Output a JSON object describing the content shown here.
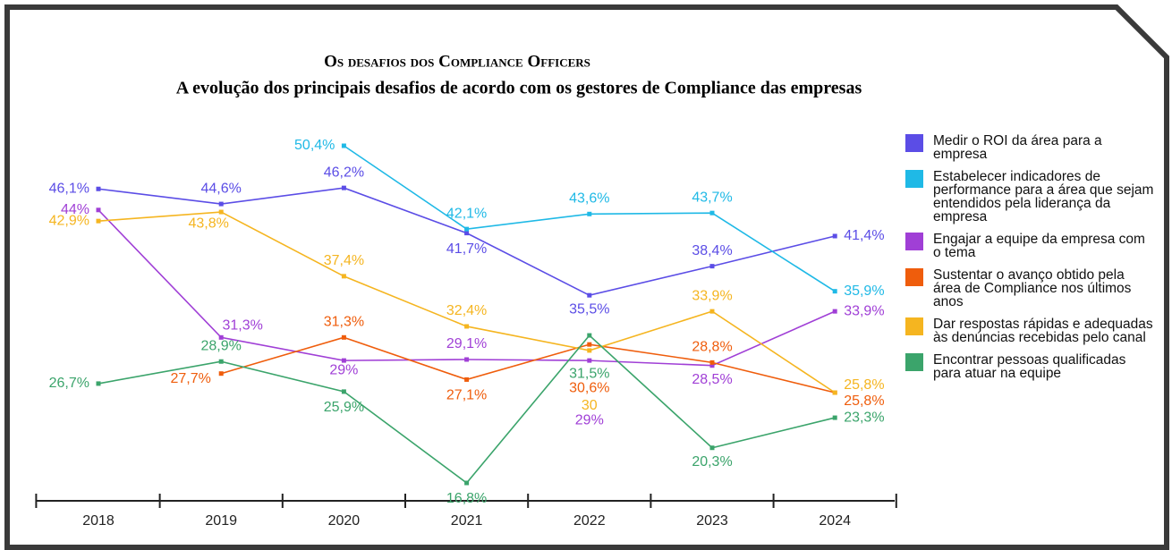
{
  "chart_data": {
    "type": "line",
    "title": "Os desafios dos Compliance Officers",
    "subtitle": "A evolução dos principais desafios de acordo com os gestores de Compliance das empresas",
    "categories": [
      "2018",
      "2019",
      "2020",
      "2021",
      "2022",
      "2023",
      "2024"
    ],
    "series": [
      {
        "name": "Medir o ROI da área para a empresa",
        "color": "#5b4de6",
        "values": [
          46.1,
          44.6,
          46.2,
          41.7,
          35.5,
          38.4,
          41.4
        ],
        "value_labels": [
          "46,1%",
          "44,6%",
          "46,2%",
          "41,7%",
          "35,5%",
          "38,4%",
          "41,4%"
        ]
      },
      {
        "name": "Estabelecer indicadores de performance para a área que sejam entendidos pela liderança da empresa",
        "color": "#1fb9e6",
        "values": [
          null,
          null,
          50.4,
          42.1,
          43.6,
          43.7,
          35.9
        ],
        "value_labels": [
          null,
          null,
          "50,4%",
          "42,1%",
          "43,6%",
          "43,7%",
          "35,9%"
        ]
      },
      {
        "name": "Engajar a equipe da empresa com o tema",
        "color": "#a03fd6",
        "values": [
          44,
          31.3,
          29,
          29.1,
          29,
          28.5,
          33.9
        ],
        "value_labels": [
          "44%",
          "31,3%",
          "29%",
          "29,1%",
          "29%",
          "28,5%",
          "33,9%"
        ]
      },
      {
        "name": "Sustentar o avanço obtido pela área de Compliance nos últimos anos",
        "color": "#ef5d0c",
        "values": [
          null,
          27.7,
          31.3,
          27.1,
          30.6,
          28.8,
          25.8
        ],
        "value_labels": [
          null,
          "27,7%",
          "31,3%",
          "27,1%",
          "30,6%",
          "28,8%",
          "25,8%"
        ]
      },
      {
        "name": "Dar respostas rápidas e adequadas às denúncias recebidas pelo canal",
        "color": "#f5b520",
        "values": [
          42.9,
          43.8,
          37.4,
          32.4,
          30,
          33.9,
          25.8
        ],
        "value_labels": [
          "42,9%",
          "43,8%",
          "37,4%",
          "32,4%",
          "30",
          "33,9%",
          "25,8%"
        ]
      },
      {
        "name": "Encontrar pessoas qualificadas para atuar na equipe",
        "color": "#3ba46b",
        "values": [
          26.7,
          28.9,
          25.9,
          16.8,
          31.5,
          20.3,
          23.3
        ],
        "value_labels": [
          "26,7%",
          "28,9%",
          "25,9%",
          "16,8%",
          "31,5%",
          "20,3%",
          "23,3%"
        ]
      }
    ]
  }
}
